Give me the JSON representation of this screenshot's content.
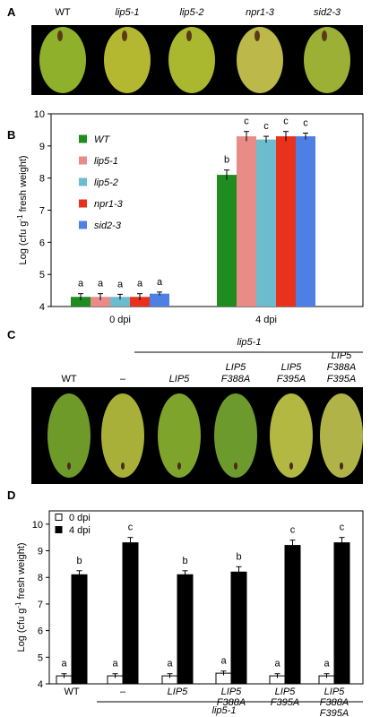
{
  "panel_labels": [
    "A",
    "B",
    "C",
    "D"
  ],
  "photo_a": {
    "columns": [
      "WT",
      "lip5-1",
      "lip5-2",
      "npr1-3",
      "sid2-3"
    ]
  },
  "photo_c": {
    "group_label": "lip5-1",
    "columns": [
      [
        "WT"
      ],
      [
        "–"
      ],
      [
        "LIP5"
      ],
      [
        "LIP5",
        "F388A"
      ],
      [
        "LIP5",
        "F395A"
      ],
      [
        "LIP5",
        "F388A",
        "F395A"
      ]
    ]
  },
  "chart_data": [
    {
      "type": "bar",
      "y_label": [
        "Log (cfu g",
        "-1",
        " fresh weight)"
      ],
      "categories": [
        [
          "0 dpi"
        ],
        [
          "4 dpi"
        ]
      ],
      "series": [
        {
          "name": "WT",
          "color": "#1e8c1e",
          "values": [
            4.3,
            8.1
          ],
          "errors": [
            0.1,
            0.15
          ],
          "letters": [
            "a",
            "b"
          ]
        },
        {
          "name": "lip5-1",
          "color": "#e98c88",
          "values": [
            4.3,
            9.3
          ],
          "errors": [
            0.1,
            0.15
          ],
          "letters": [
            "a",
            "c"
          ]
        },
        {
          "name": "lip5-2",
          "color": "#6cbcd0",
          "values": [
            4.3,
            9.2
          ],
          "errors": [
            0.08,
            0.1
          ],
          "letters": [
            "a",
            "c"
          ]
        },
        {
          "name": "npr1-3",
          "color": "#e8321c",
          "values": [
            4.3,
            9.3
          ],
          "errors": [
            0.1,
            0.15
          ],
          "letters": [
            "a",
            "c"
          ]
        },
        {
          "name": "sid2-3",
          "color": "#4e7fe4",
          "values": [
            4.4,
            9.3
          ],
          "errors": [
            0.05,
            0.1
          ],
          "letters": [
            "a",
            "c"
          ]
        }
      ],
      "ylim": [
        4,
        10
      ],
      "yticks": [
        4,
        5,
        6,
        7,
        8,
        9,
        10
      ]
    },
    {
      "type": "bar",
      "y_label": [
        "Log (cfu g",
        "-1",
        " fresh weight)"
      ],
      "categories": [
        [
          "WT"
        ],
        [
          "–"
        ],
        [
          "LIP5"
        ],
        [
          "LIP5",
          "F388A"
        ],
        [
          "LIP5",
          "F395A"
        ],
        [
          "LIP5",
          "F388A",
          "F395A"
        ]
      ],
      "group_label": "lip5-1",
      "series": [
        {
          "name": "0 dpi",
          "color": "#ffffff",
          "values": [
            4.3,
            4.3,
            4.3,
            4.4,
            4.3,
            4.3
          ],
          "errors": [
            0.08,
            0.08,
            0.08,
            0.08,
            0.08,
            0.08
          ],
          "letters": [
            "a",
            "a",
            "a",
            "a",
            "a",
            "a"
          ]
        },
        {
          "name": "4 dpi",
          "color": "#000000",
          "values": [
            8.1,
            9.3,
            8.1,
            8.2,
            9.2,
            9.3
          ],
          "errors": [
            0.15,
            0.2,
            0.15,
            0.2,
            0.2,
            0.2
          ],
          "letters": [
            "b",
            "c",
            "b",
            "b",
            "c",
            "c"
          ]
        }
      ],
      "ylim": [
        4,
        10.5
      ],
      "yticks": [
        4,
        5,
        6,
        7,
        8,
        9,
        10
      ]
    }
  ]
}
